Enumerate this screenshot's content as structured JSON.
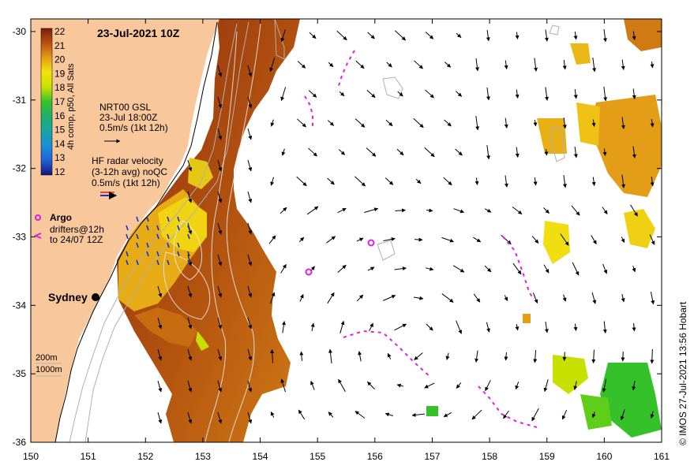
{
  "title": "23-Jul-2021 10Z",
  "credit": "© IMOS 27-Jul-2021 13:56 Hobart",
  "colorbar": {
    "label": "4h comp, p50, All Sats",
    "ticks": [
      "22",
      "21",
      "20",
      "19",
      "18",
      "17",
      "16",
      "15",
      "14",
      "13",
      "12"
    ],
    "colors": [
      "#7a1e0c",
      "#9a2f0e",
      "#b84f12",
      "#cf7414",
      "#e39d16",
      "#efc114",
      "#f4e40c",
      "#c8e000",
      "#7bd40f",
      "#35c12a",
      "#1eb06a",
      "#16a5a5",
      "#1a8fd6",
      "#1f62d6",
      "#1b36b8",
      "#15157a"
    ]
  },
  "legend": {
    "gsl": {
      "line1": "NRT00 GSL",
      "line2": "23-Jul 18:00Z",
      "line3": "0.5m/s (1kt 12h)"
    },
    "radar": {
      "line1": "HF radar velocity",
      "line2": "(3-12h avg) noQC",
      "line3": "0.5m/s (1kt 12h)"
    },
    "argo": {
      "label": "Argo"
    },
    "drifters": {
      "line1": "drifters@12h",
      "line2": "to 24/07 12Z"
    },
    "depth": {
      "line1": "200m",
      "line2": "1000m"
    }
  },
  "city": {
    "name": "Sydney"
  },
  "axes": {
    "x_ticks": [
      "150",
      "151",
      "152",
      "153",
      "154",
      "155",
      "156",
      "157",
      "158",
      "159",
      "160",
      "161"
    ],
    "y_ticks": [
      "-30",
      "-31",
      "-32",
      "-33",
      "-34",
      "-35",
      "-36"
    ]
  },
  "colors": {
    "land": "#f8c79b",
    "arrow": "#000000",
    "argo": "#e020e0",
    "radar": "#1830d0",
    "bathy": "#b0b0b0"
  }
}
